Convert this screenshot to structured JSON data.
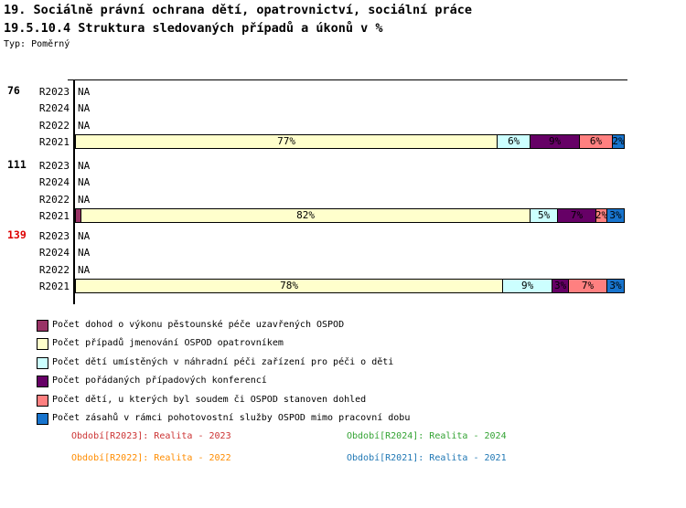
{
  "title_line1": "19. Sociálně právní ochrana dětí, opatrovnictví, sociální práce",
  "title_line2": "19.5.10.4 Struktura sledovaných případů a úkonů v %",
  "type_label": "Typ: Poměrný",
  "chart_data": {
    "type": "bar",
    "orientation": "horizontal",
    "stacked": true,
    "value_unit": "%",
    "x_range": [
      0,
      100
    ],
    "legend_position": "bottom-left",
    "series": [
      {
        "name": "Počet dohod o výkonu pěstounské péče uzavřených OSPOD",
        "color": "#993366"
      },
      {
        "name": "Počet případů jmenování OSPOD opatrovníkem",
        "color": "#FFFFCC"
      },
      {
        "name": "Počet dětí umístěných v náhradní péči zařízení pro péči o děti",
        "color": "#CCFFFF"
      },
      {
        "name": "Počet pořádaných případových konferencí",
        "color": "#660066"
      },
      {
        "name": "Počet dětí, u kterých byl soudem či OSPOD stanoven dohled",
        "color": "#FF8080"
      },
      {
        "name": "Počet zásahů v rámci pohotovostní služby OSPOD mimo pracovní dobu",
        "color": "#1874CD"
      }
    ],
    "groups": [
      {
        "label": "76",
        "label_color": "#000000",
        "rows": [
          {
            "period": "R2023",
            "na": "NA"
          },
          {
            "period": "R2024",
            "na": "NA"
          },
          {
            "period": "R2022",
            "na": "NA"
          },
          {
            "period": "R2021",
            "segments": [
              {
                "series": 1,
                "value": 77,
                "text": "77%"
              },
              {
                "series": 2,
                "value": 6,
                "text": "6%"
              },
              {
                "series": 3,
                "value": 9,
                "text": "9%"
              },
              {
                "series": 4,
                "value": 6,
                "text": "6%"
              },
              {
                "series": 5,
                "value": 2,
                "text": "2%"
              }
            ]
          }
        ]
      },
      {
        "label": "111",
        "label_color": "#000000",
        "rows": [
          {
            "period": "R2023",
            "na": "NA"
          },
          {
            "period": "R2024",
            "na": "NA"
          },
          {
            "period": "R2022",
            "na": "NA"
          },
          {
            "period": "R2021",
            "segments": [
              {
                "series": 0,
                "value": 1,
                "text": ""
              },
              {
                "series": 1,
                "value": 82,
                "text": "82%"
              },
              {
                "series": 2,
                "value": 5,
                "text": "5%"
              },
              {
                "series": 3,
                "value": 7,
                "text": "7%"
              },
              {
                "series": 4,
                "value": 2,
                "text": "2%"
              },
              {
                "series": 5,
                "value": 3,
                "text": "3%"
              }
            ]
          }
        ]
      },
      {
        "label": "139",
        "label_color": "#DD0000",
        "rows": [
          {
            "period": "R2023",
            "na": "NA"
          },
          {
            "period": "R2024",
            "na": "NA"
          },
          {
            "period": "R2022",
            "na": "NA"
          },
          {
            "period": "R2021",
            "segments": [
              {
                "series": 1,
                "value": 78,
                "text": "78%"
              },
              {
                "series": 2,
                "value": 9,
                "text": "9%"
              },
              {
                "series": 3,
                "value": 3,
                "text": "3%"
              },
              {
                "series": 4,
                "value": 7,
                "text": "7%"
              },
              {
                "series": 5,
                "value": 3,
                "text": "3%"
              }
            ]
          }
        ]
      }
    ]
  },
  "periods_legend": [
    {
      "text": "Období[R2023]: Realita - 2023",
      "color": "#CC3333",
      "col": 0,
      "row": 0
    },
    {
      "text": "Období[R2024]: Realita - 2024",
      "color": "#33A333",
      "col": 1,
      "row": 0
    },
    {
      "text": "Období[R2022]: Realita - 2022",
      "color": "#FF8C00",
      "col": 0,
      "row": 1
    },
    {
      "text": "Období[R2021]: Realita - 2021",
      "color": "#1F77B4",
      "col": 1,
      "row": 1
    }
  ]
}
